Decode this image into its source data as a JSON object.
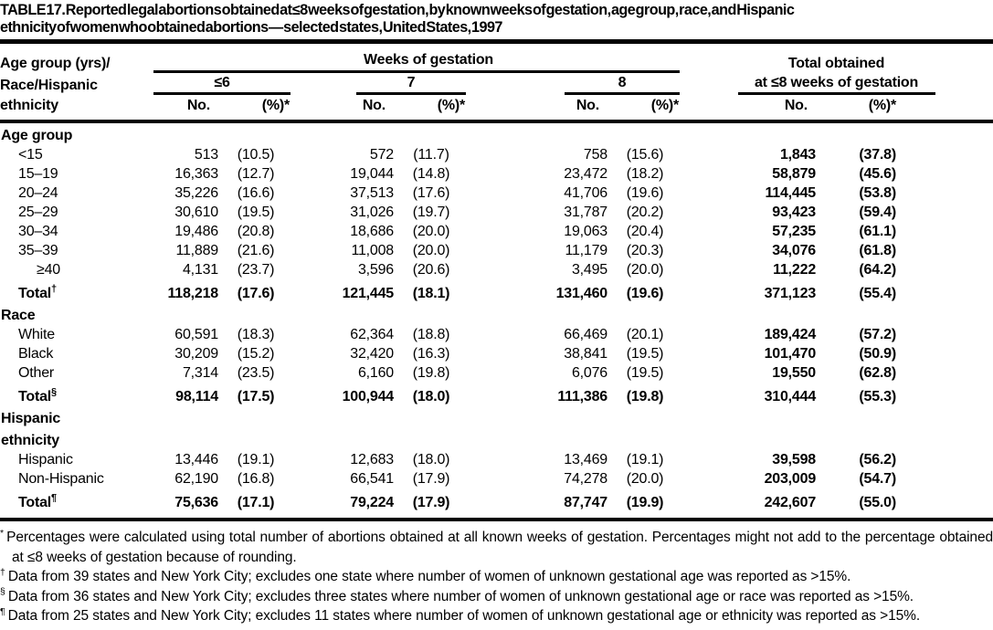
{
  "page": {
    "background": "#ffffff",
    "text_color": "#000000"
  },
  "title": {
    "lines": [
      "TABLE 17. Reported legal abortions obtained at ≤8 weeks of gestation, by known weeks of gestation, age group, race, and Hispanic",
      "ethnicity of women who obtained abortions — selected states, United States, 1997"
    ]
  },
  "table": {
    "stub_header_lines": [
      "Age group (yrs)/",
      "Race/Hispanic",
      "ethnicity"
    ],
    "weeks_header": "Weeks of gestation",
    "total_header_lines": [
      "Total obtained",
      "at ≤8 weeks of gestation"
    ],
    "week_groups": [
      "≤6",
      "7",
      "8"
    ],
    "sub_headers": {
      "no": "No.",
      "pct": "(%)*"
    },
    "sections": [
      {
        "label_lines": [
          "Age group"
        ],
        "rows": [
          {
            "label": "<15",
            "values": [
              "513",
              "(10.5)",
              "572",
              "(11.7)",
              "758",
              "(15.6)",
              "1,843",
              "(37.8)"
            ]
          },
          {
            "label": "15–19",
            "values": [
              "16,363",
              "(12.7)",
              "19,044",
              "(14.8)",
              "23,472",
              "(18.2)",
              "58,879",
              "(45.6)"
            ]
          },
          {
            "label": "20–24",
            "values": [
              "35,226",
              "(16.6)",
              "37,513",
              "(17.6)",
              "41,706",
              "(19.6)",
              "114,445",
              "(53.8)"
            ]
          },
          {
            "label": "25–29",
            "values": [
              "30,610",
              "(19.5)",
              "31,026",
              "(19.7)",
              "31,787",
              "(20.2)",
              "93,423",
              "(59.4)"
            ]
          },
          {
            "label": "30–34",
            "values": [
              "19,486",
              "(20.8)",
              "18,686",
              "(20.0)",
              "19,063",
              "(20.4)",
              "57,235",
              "(61.1)"
            ]
          },
          {
            "label": "35–39",
            "values": [
              "11,889",
              "(21.6)",
              "11,008",
              "(20.0)",
              "11,179",
              "(20.3)",
              "34,076",
              "(61.8)"
            ]
          },
          {
            "label": "≥40",
            "indent": 2,
            "values": [
              "4,131",
              "(23.7)",
              "3,596",
              "(20.6)",
              "3,495",
              "(20.0)",
              "11,222",
              "(64.2)"
            ]
          }
        ],
        "total": {
          "label": "Total",
          "marker": "†",
          "values": [
            "118,218",
            "(17.6)",
            "121,445",
            "(18.1)",
            "131,460",
            "(19.6)",
            "371,123",
            "(55.4)"
          ]
        }
      },
      {
        "label_lines": [
          "Race"
        ],
        "rows": [
          {
            "label": "White",
            "values": [
              "60,591",
              "(18.3)",
              "62,364",
              "(18.8)",
              "66,469",
              "(20.1)",
              "189,424",
              "(57.2)"
            ]
          },
          {
            "label": "Black",
            "values": [
              "30,209",
              "(15.2)",
              "32,420",
              "(16.3)",
              "38,841",
              "(19.5)",
              "101,470",
              "(50.9)"
            ]
          },
          {
            "label": "Other",
            "values": [
              "7,314",
              "(23.5)",
              "6,160",
              "(19.8)",
              "6,076",
              "(19.5)",
              "19,550",
              "(62.8)"
            ]
          }
        ],
        "total": {
          "label": "Total",
          "marker": "§",
          "values": [
            "98,114",
            "(17.5)",
            "100,944",
            "(18.0)",
            "111,386",
            "(19.8)",
            "310,444",
            "(55.3)"
          ]
        }
      },
      {
        "label_lines": [
          "Hispanic",
          "ethnicity"
        ],
        "rows": [
          {
            "label": "Hispanic",
            "values": [
              "13,446",
              "(19.1)",
              "12,683",
              "(18.0)",
              "13,469",
              "(19.1)",
              "39,598",
              "(56.2)"
            ]
          },
          {
            "label": "Non-Hispanic",
            "values": [
              "62,190",
              "(16.8)",
              "66,541",
              "(17.9)",
              "74,278",
              "(20.0)",
              "203,009",
              "(54.7)"
            ]
          }
        ],
        "total": {
          "label": "Total",
          "marker": "¶",
          "values": [
            "75,636",
            "(17.1)",
            "79,224",
            "(17.9)",
            "87,747",
            "(19.9)",
            "242,607",
            "(55.0)"
          ]
        }
      }
    ]
  },
  "footnotes": [
    {
      "marker": "*",
      "text": "Percentages were calculated using total number of abortions obtained at all known weeks of gestation. Percentages might not add to the percentage obtained at ≤8 weeks of gestation because of rounding."
    },
    {
      "marker": "†",
      "text": "Data from 39 states and New York City; excludes one state where number of women of unknown gestational age was reported as >15%."
    },
    {
      "marker": "§",
      "text": "Data from 36 states and New York City; excludes three states where number of women of unknown gestational age or race was reported as >15%."
    },
    {
      "marker": "¶",
      "text": "Data from 25 states and New York City; excludes 11 states where number of women of unknown gestational age or ethnicity was reported as >15%."
    }
  ]
}
